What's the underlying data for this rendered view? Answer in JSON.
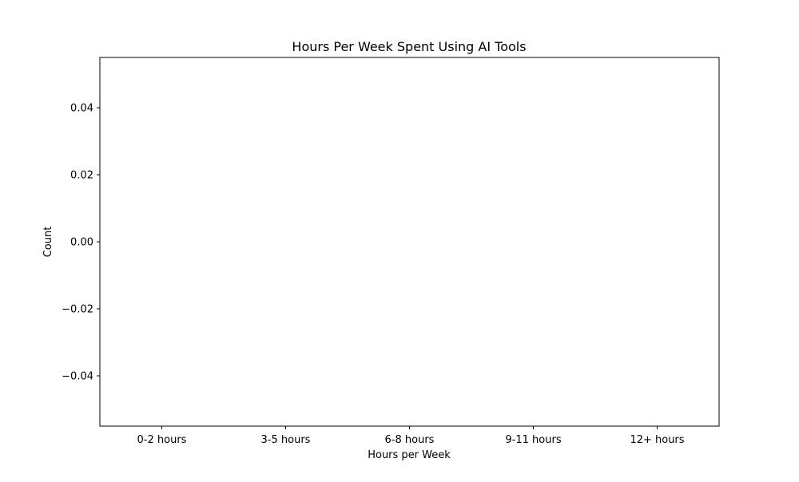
{
  "chart_data": {
    "type": "bar",
    "title": "Hours Per Week Spent Using AI Tools",
    "xlabel": "Hours per Week",
    "ylabel": "Count",
    "categories": [
      "0-2 hours",
      "3-5 hours",
      "6-8 hours",
      "9-11 hours",
      "12+ hours"
    ],
    "values": [
      0,
      0,
      0,
      0,
      0
    ],
    "ylim": [
      -0.055,
      0.055
    ],
    "yticks": [
      0.04,
      0.02,
      0.0,
      -0.02,
      -0.04
    ],
    "ytick_labels": [
      "0.04",
      "0.02",
      "0.00",
      "−0.02",
      "−0.04"
    ],
    "grid": false,
    "legend": "none",
    "colors": {
      "bar": "#1f77b4",
      "axes": "#000000",
      "background": "#ffffff"
    }
  }
}
